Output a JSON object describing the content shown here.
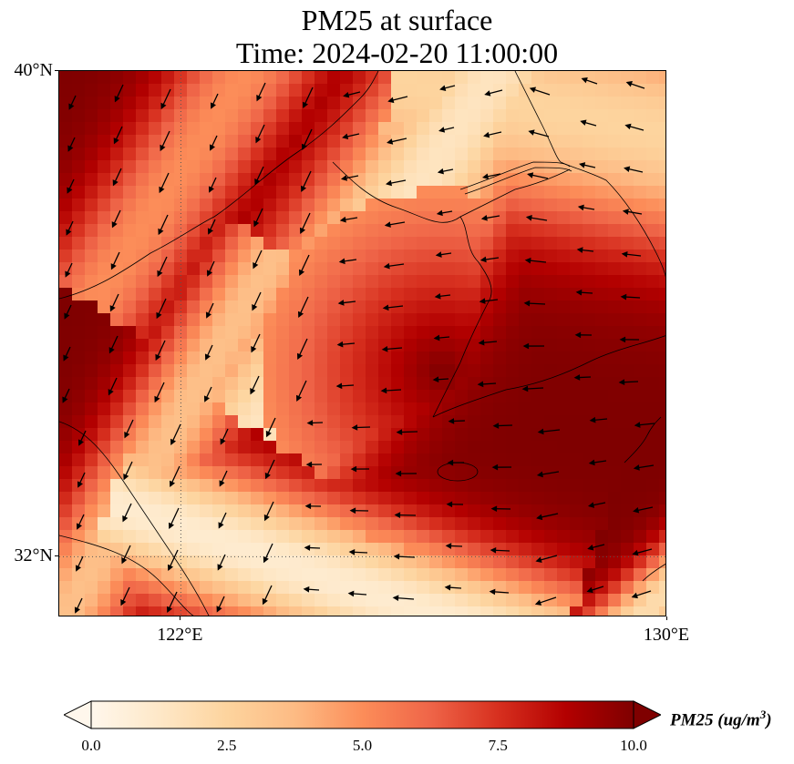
{
  "title": {
    "line1": "PM25 at surface",
    "line2": "Time: 2024-02-20 11:00:00"
  },
  "axes": {
    "lat_labels": [
      "40°N",
      "32°N"
    ],
    "lon_labels": [
      "122°E",
      "130°E"
    ],
    "lat_range": [
      31,
      40
    ],
    "lon_range": [
      120,
      130
    ],
    "gridlines": {
      "lon": 122,
      "lat": 32,
      "style": "dotted"
    }
  },
  "colorbar": {
    "label_main": "PM25 (ug/m",
    "label_sup": "3",
    "label_end": ")",
    "ticks": [
      "0.0",
      "2.5",
      "5.0",
      "7.5",
      "10.0"
    ],
    "range": [
      0,
      10
    ],
    "colormap": "OrRd",
    "extend": "both",
    "colors": [
      "#fff7ec",
      "#fee8c8",
      "#fdd49e",
      "#fdbb84",
      "#fc8d59",
      "#ef6548",
      "#d7301f",
      "#b30000",
      "#7f0000"
    ]
  },
  "map": {
    "field": "PM25",
    "level": "surface",
    "vectors": "wind arrows"
  }
}
